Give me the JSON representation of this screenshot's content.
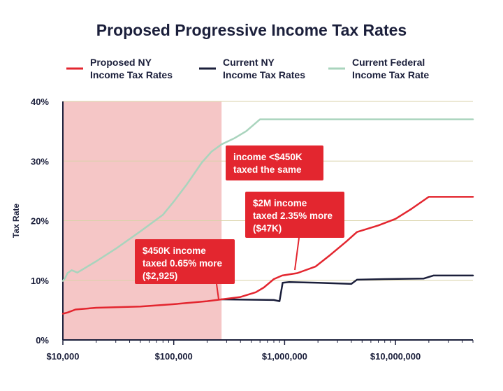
{
  "chart_data": {
    "type": "line",
    "title": "Proposed Progressive Income Tax Rates",
    "xlabel": "",
    "ylabel": "Tax Rate",
    "x_scale": "log",
    "xlim": [
      10000,
      50000000
    ],
    "ylim": [
      0,
      40
    ],
    "grid": true,
    "legend_position": "top",
    "x_ticks": [
      {
        "value": 10000,
        "label": "$10,000"
      },
      {
        "value": 100000,
        "label": "$100,000"
      },
      {
        "value": 1000000,
        "label": "$1,000,000"
      },
      {
        "value": 10000000,
        "label": "$10,000,000"
      }
    ],
    "y_ticks": [
      {
        "value": 0,
        "label": "0%"
      },
      {
        "value": 10,
        "label": "10%"
      },
      {
        "value": 20,
        "label": "20%"
      },
      {
        "value": 30,
        "label": "30%"
      },
      {
        "value": 40,
        "label": "40%"
      }
    ],
    "shaded_region": {
      "x_from": 10000,
      "x_to": 270000,
      "color": "#f5c6c6"
    },
    "series": [
      {
        "name": "Proposed NY\nIncome Tax Rates",
        "color": "#e3262f",
        "points": [
          [
            10000,
            4.4
          ],
          [
            11000,
            4.6
          ],
          [
            13000,
            5.1
          ],
          [
            20000,
            5.4
          ],
          [
            50000,
            5.6
          ],
          [
            100000,
            6.0
          ],
          [
            200000,
            6.5
          ],
          [
            270000,
            6.8
          ],
          [
            400000,
            7.2
          ],
          [
            550000,
            8.0
          ],
          [
            650000,
            8.8
          ],
          [
            800000,
            10.2
          ],
          [
            950000,
            10.8
          ],
          [
            1300000,
            11.2
          ],
          [
            1900000,
            12.3
          ],
          [
            2600000,
            14.3
          ],
          [
            3600000,
            16.5
          ],
          [
            4500000,
            18.1
          ],
          [
            7000000,
            19.2
          ],
          [
            10000000,
            20.3
          ],
          [
            14000000,
            22.0
          ],
          [
            20000000,
            24.0
          ],
          [
            50000000,
            24.0
          ]
        ]
      },
      {
        "name": "Current NY\nIncome Tax Rates",
        "color": "#1b1f3b",
        "points": [
          [
            270000,
            6.8
          ],
          [
            800000,
            6.7
          ],
          [
            900000,
            6.5
          ],
          [
            960000,
            9.6
          ],
          [
            1100000,
            9.7
          ],
          [
            2000000,
            9.6
          ],
          [
            4000000,
            9.4
          ],
          [
            4500000,
            10.1
          ],
          [
            8000000,
            10.2
          ],
          [
            18000000,
            10.3
          ],
          [
            22000000,
            10.8
          ],
          [
            50000000,
            10.8
          ]
        ]
      },
      {
        "name": "Current Federal\nIncome Tax Rate",
        "color": "#a9d4bd",
        "points": [
          [
            10000,
            9.9
          ],
          [
            10500,
            10.4
          ],
          [
            11000,
            11.2
          ],
          [
            12000,
            11.7
          ],
          [
            13500,
            11.3
          ],
          [
            15000,
            11.8
          ],
          [
            20000,
            13.2
          ],
          [
            30000,
            15.3
          ],
          [
            50000,
            18.2
          ],
          [
            80000,
            21.0
          ],
          [
            100000,
            23.2
          ],
          [
            130000,
            26.0
          ],
          [
            180000,
            29.8
          ],
          [
            220000,
            31.6
          ],
          [
            270000,
            32.8
          ],
          [
            350000,
            33.8
          ],
          [
            450000,
            35.0
          ],
          [
            600000,
            37.0
          ],
          [
            1000000,
            37.0
          ],
          [
            50000000,
            37.0
          ]
        ]
      }
    ],
    "annotations": [
      {
        "id": "annot-450k-same",
        "text": [
          "income <$450K",
          "taxed the same"
        ],
        "color": "#e3262f",
        "text_color": "#ffffff"
      },
      {
        "id": "annot-2m",
        "text": [
          "$2M income",
          "taxed 2.35% more",
          "($47K)"
        ],
        "color": "#e3262f",
        "text_color": "#ffffff"
      },
      {
        "id": "annot-450k",
        "text": [
          "$450K income",
          "taxed 0.65% more",
          "($2,925)"
        ],
        "color": "#e3262f",
        "text_color": "#ffffff"
      }
    ]
  }
}
